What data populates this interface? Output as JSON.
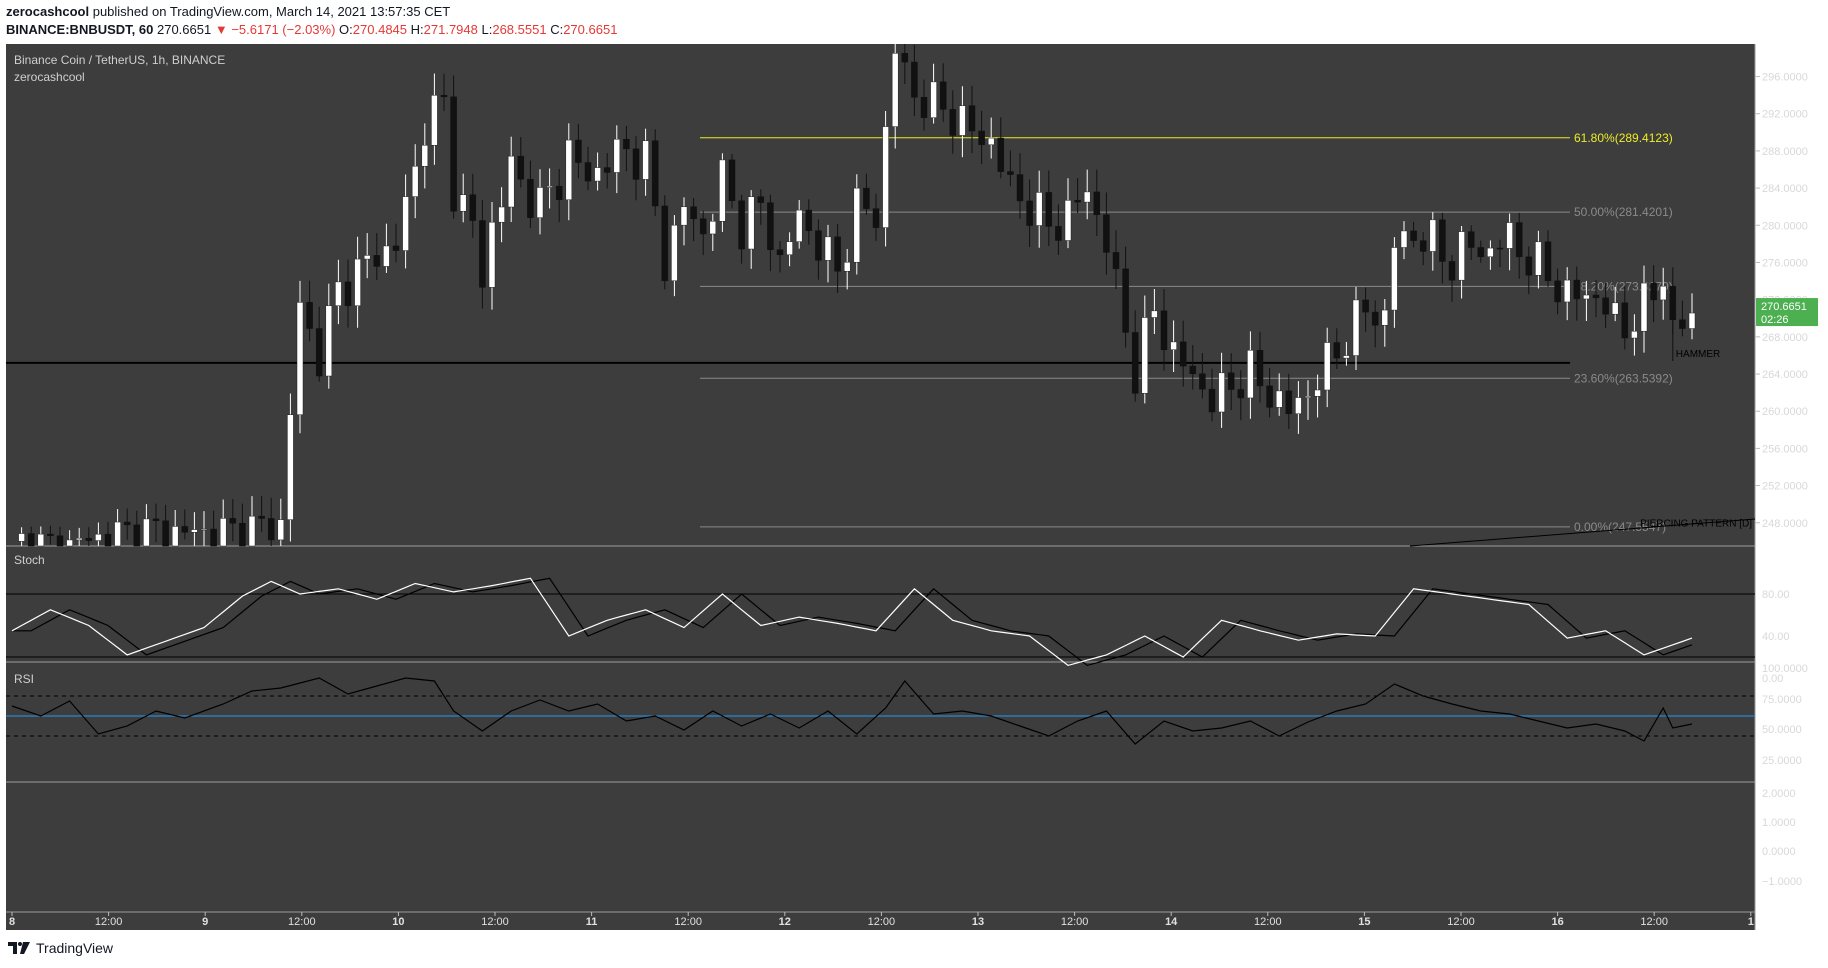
{
  "header": {
    "author": "zerocashcool",
    "published": "published on TradingView.com, March 14, 2021 13:57:35 CET",
    "symbol": "BINANCE:BNBUSDT, 60",
    "last": "270.6651",
    "change": "−5.6171 (−2.03%)",
    "o_label": "O:",
    "o": "270.4845",
    "h_label": "H:",
    "h": "271.7948",
    "l_label": "L:",
    "l": "268.5551",
    "c_label": "C:",
    "c": "270.6651"
  },
  "footer": {
    "brand": "TradingView"
  },
  "colors": {
    "pane_bg": "#3d3d3d",
    "frame_bg": "#ffffff",
    "up": "#ffffff",
    "down": "#111111",
    "fib_gold": "#ecec2a",
    "fib_grey": "#8a8a8a",
    "rsi_mid": "#2196f3",
    "price_badge": "#4caf50"
  },
  "chart_data": {
    "type": "candlestick",
    "title": "Binance Coin / TetherUS, 1h, BINANCE",
    "subtitle": "zerocashcool",
    "interval": "1h",
    "ylim": [
      245.5,
      299.5
    ],
    "price_ticks": [
      "296.0000",
      "292.0000",
      "288.0000",
      "284.0000",
      "280.0000",
      "276.0000",
      "272.0000",
      "268.0000",
      "264.0000",
      "260.0000",
      "256.0000",
      "252.0000",
      "248.0000"
    ],
    "time_labels": [
      "8",
      "12:00",
      "9",
      "12:00",
      "10",
      "12:00",
      "11",
      "12:00",
      "12",
      "12:00",
      "13",
      "12:00",
      "14",
      "12:00",
      "15",
      "12:00",
      "16",
      "12:00",
      "1"
    ],
    "last_price": "270.6651",
    "countdown": "02:26",
    "support_level": 265.2,
    "fibonacci": [
      {
        "label": "61.80%(289.4123)",
        "level": 289.4123
      },
      {
        "label": "50.00%(281.4201)",
        "level": 281.4201
      },
      {
        "label": "38.20%(273.4279)",
        "level": 273.4279
      },
      {
        "label": "23.60%(263.5392)",
        "level": 263.5392
      },
      {
        "label": "0.00%(247.5547)",
        "level": 247.5547
      }
    ],
    "annotations": [
      "HAMMER",
      "PIERCING PATTERN [D]"
    ],
    "anchors": [
      {
        "bar": 0,
        "close": 246
      },
      {
        "bar": 5,
        "close": 245
      },
      {
        "bar": 7,
        "close": 246
      },
      {
        "bar": 10,
        "close": 246.5
      },
      {
        "bar": 14,
        "close": 247
      },
      {
        "bar": 18,
        "close": 247
      },
      {
        "bar": 22,
        "close": 246.8
      },
      {
        "bar": 28,
        "close": 247.8
      },
      {
        "bar": 29,
        "close": 260
      },
      {
        "bar": 30,
        "close": 271
      },
      {
        "bar": 32,
        "close": 266
      },
      {
        "bar": 34,
        "close": 273
      },
      {
        "bar": 37,
        "close": 276
      },
      {
        "bar": 40,
        "close": 278
      },
      {
        "bar": 42,
        "close": 286
      },
      {
        "bar": 43,
        "close": 291
      },
      {
        "bar": 45,
        "close": 293
      },
      {
        "bar": 46,
        "close": 284
      },
      {
        "bar": 48,
        "close": 280
      },
      {
        "bar": 49,
        "close": 274
      },
      {
        "bar": 50,
        "close": 280
      },
      {
        "bar": 52,
        "close": 286
      },
      {
        "bar": 55,
        "close": 282
      },
      {
        "bar": 57,
        "close": 285
      },
      {
        "bar": 58,
        "close": 288
      },
      {
        "bar": 60,
        "close": 285
      },
      {
        "bar": 62,
        "close": 287
      },
      {
        "bar": 64,
        "close": 288
      },
      {
        "bar": 66,
        "close": 287
      },
      {
        "bar": 68,
        "close": 276
      },
      {
        "bar": 70,
        "close": 282
      },
      {
        "bar": 72,
        "close": 279
      },
      {
        "bar": 74,
        "close": 285
      },
      {
        "bar": 76,
        "close": 280
      },
      {
        "bar": 78,
        "close": 282
      },
      {
        "bar": 80,
        "close": 276
      },
      {
        "bar": 82,
        "close": 281
      },
      {
        "bar": 84,
        "close": 278
      },
      {
        "bar": 86,
        "close": 275
      },
      {
        "bar": 88,
        "close": 282
      },
      {
        "bar": 90,
        "close": 281
      },
      {
        "bar": 92,
        "close": 299
      },
      {
        "bar": 94,
        "close": 294
      },
      {
        "bar": 96,
        "close": 293
      },
      {
        "bar": 98,
        "close": 292
      },
      {
        "bar": 100,
        "close": 290
      },
      {
        "bar": 102,
        "close": 289
      },
      {
        "bar": 104,
        "close": 284
      },
      {
        "bar": 106,
        "close": 282
      },
      {
        "bar": 108,
        "close": 280
      },
      {
        "bar": 110,
        "close": 281
      },
      {
        "bar": 112,
        "close": 284
      },
      {
        "bar": 114,
        "close": 278
      },
      {
        "bar": 116,
        "close": 269
      },
      {
        "bar": 117,
        "close": 264
      },
      {
        "bar": 119,
        "close": 271
      },
      {
        "bar": 121,
        "close": 266
      },
      {
        "bar": 123,
        "close": 264
      },
      {
        "bar": 125,
        "close": 261
      },
      {
        "bar": 127,
        "close": 263
      },
      {
        "bar": 129,
        "close": 264
      },
      {
        "bar": 131,
        "close": 262
      },
      {
        "bar": 133,
        "close": 260
      },
      {
        "bar": 135,
        "close": 262
      },
      {
        "bar": 137,
        "close": 265
      },
      {
        "bar": 139,
        "close": 268
      },
      {
        "bar": 141,
        "close": 271
      },
      {
        "bar": 143,
        "close": 270
      },
      {
        "bar": 144,
        "close": 278
      },
      {
        "bar": 146,
        "close": 279
      },
      {
        "bar": 148,
        "close": 278
      },
      {
        "bar": 150,
        "close": 276
      },
      {
        "bar": 152,
        "close": 278
      },
      {
        "bar": 154,
        "close": 277
      },
      {
        "bar": 156,
        "close": 279
      },
      {
        "bar": 158,
        "close": 276
      },
      {
        "bar": 160,
        "close": 275
      },
      {
        "bar": 162,
        "close": 272
      },
      {
        "bar": 164,
        "close": 273
      },
      {
        "bar": 166,
        "close": 271
      },
      {
        "bar": 168,
        "close": 269
      },
      {
        "bar": 170,
        "close": 271
      },
      {
        "bar": 172,
        "close": 275
      },
      {
        "bar": 173,
        "close": 268
      },
      {
        "bar": 175,
        "close": 270.67
      }
    ],
    "stoch": {
      "name": "Stoch",
      "ticks": [
        "80.00",
        "40.00",
        "0.00"
      ],
      "upper": 80,
      "lower": 20,
      "k": [
        {
          "bar": 0,
          "v": 45
        },
        {
          "bar": 4,
          "v": 65
        },
        {
          "bar": 8,
          "v": 50
        },
        {
          "bar": 12,
          "v": 22
        },
        {
          "bar": 16,
          "v": 35
        },
        {
          "bar": 20,
          "v": 48
        },
        {
          "bar": 24,
          "v": 78
        },
        {
          "bar": 27,
          "v": 92
        },
        {
          "bar": 30,
          "v": 80
        },
        {
          "bar": 34,
          "v": 85
        },
        {
          "bar": 38,
          "v": 75
        },
        {
          "bar": 42,
          "v": 90
        },
        {
          "bar": 46,
          "v": 82
        },
        {
          "bar": 50,
          "v": 88
        },
        {
          "bar": 54,
          "v": 95
        },
        {
          "bar": 58,
          "v": 40
        },
        {
          "bar": 62,
          "v": 55
        },
        {
          "bar": 66,
          "v": 65
        },
        {
          "bar": 70,
          "v": 48
        },
        {
          "bar": 74,
          "v": 80
        },
        {
          "bar": 78,
          "v": 50
        },
        {
          "bar": 82,
          "v": 58
        },
        {
          "bar": 86,
          "v": 52
        },
        {
          "bar": 90,
          "v": 45
        },
        {
          "bar": 94,
          "v": 85
        },
        {
          "bar": 98,
          "v": 55
        },
        {
          "bar": 102,
          "v": 45
        },
        {
          "bar": 106,
          "v": 40
        },
        {
          "bar": 110,
          "v": 12
        },
        {
          "bar": 114,
          "v": 22
        },
        {
          "bar": 118,
          "v": 40
        },
        {
          "bar": 122,
          "v": 20
        },
        {
          "bar": 126,
          "v": 55
        },
        {
          "bar": 130,
          "v": 45
        },
        {
          "bar": 134,
          "v": 36
        },
        {
          "bar": 138,
          "v": 42
        },
        {
          "bar": 142,
          "v": 40
        },
        {
          "bar": 146,
          "v": 85
        },
        {
          "bar": 150,
          "v": 80
        },
        {
          "bar": 154,
          "v": 75
        },
        {
          "bar": 158,
          "v": 70
        },
        {
          "bar": 162,
          "v": 38
        },
        {
          "bar": 166,
          "v": 45
        },
        {
          "bar": 170,
          "v": 22
        },
        {
          "bar": 175,
          "v": 38
        }
      ]
    },
    "rsi": {
      "name": "RSI",
      "ticks": [
        "100.0000",
        "75.0000",
        "50.0000",
        "25.0000"
      ],
      "upper": 70,
      "mid": 50,
      "lower": 30,
      "values": [
        {
          "bar": 0,
          "v": 60
        },
        {
          "bar": 3,
          "v": 50
        },
        {
          "bar": 6,
          "v": 65
        },
        {
          "bar": 9,
          "v": 32
        },
        {
          "bar": 12,
          "v": 40
        },
        {
          "bar": 15,
          "v": 55
        },
        {
          "bar": 18,
          "v": 48
        },
        {
          "bar": 22,
          "v": 62
        },
        {
          "bar": 25,
          "v": 75
        },
        {
          "bar": 28,
          "v": 78
        },
        {
          "bar": 32,
          "v": 88
        },
        {
          "bar": 35,
          "v": 72
        },
        {
          "bar": 38,
          "v": 80
        },
        {
          "bar": 41,
          "v": 88
        },
        {
          "bar": 44,
          "v": 85
        },
        {
          "bar": 46,
          "v": 55
        },
        {
          "bar": 49,
          "v": 35
        },
        {
          "bar": 52,
          "v": 55
        },
        {
          "bar": 55,
          "v": 66
        },
        {
          "bar": 58,
          "v": 55
        },
        {
          "bar": 61,
          "v": 62
        },
        {
          "bar": 64,
          "v": 45
        },
        {
          "bar": 67,
          "v": 50
        },
        {
          "bar": 70,
          "v": 36
        },
        {
          "bar": 73,
          "v": 55
        },
        {
          "bar": 76,
          "v": 40
        },
        {
          "bar": 79,
          "v": 52
        },
        {
          "bar": 82,
          "v": 38
        },
        {
          "bar": 85,
          "v": 55
        },
        {
          "bar": 88,
          "v": 32
        },
        {
          "bar": 91,
          "v": 58
        },
        {
          "bar": 93,
          "v": 85
        },
        {
          "bar": 96,
          "v": 52
        },
        {
          "bar": 99,
          "v": 55
        },
        {
          "bar": 102,
          "v": 50
        },
        {
          "bar": 105,
          "v": 40
        },
        {
          "bar": 108,
          "v": 30
        },
        {
          "bar": 111,
          "v": 45
        },
        {
          "bar": 114,
          "v": 55
        },
        {
          "bar": 117,
          "v": 22
        },
        {
          "bar": 120,
          "v": 45
        },
        {
          "bar": 123,
          "v": 35
        },
        {
          "bar": 126,
          "v": 38
        },
        {
          "bar": 129,
          "v": 45
        },
        {
          "bar": 132,
          "v": 30
        },
        {
          "bar": 135,
          "v": 44
        },
        {
          "bar": 138,
          "v": 55
        },
        {
          "bar": 141,
          "v": 62
        },
        {
          "bar": 144,
          "v": 82
        },
        {
          "bar": 147,
          "v": 70
        },
        {
          "bar": 150,
          "v": 62
        },
        {
          "bar": 153,
          "v": 55
        },
        {
          "bar": 156,
          "v": 52
        },
        {
          "bar": 159,
          "v": 45
        },
        {
          "bar": 162,
          "v": 38
        },
        {
          "bar": 165,
          "v": 42
        },
        {
          "bar": 168,
          "v": 35
        },
        {
          "bar": 170,
          "v": 25
        },
        {
          "bar": 172,
          "v": 58
        },
        {
          "bar": 173,
          "v": 38
        },
        {
          "bar": 175,
          "v": 42
        }
      ]
    },
    "bottom_pane": {
      "ticks": [
        "2.0000",
        "1.0000",
        "0.0000",
        "−1.0000"
      ]
    }
  }
}
